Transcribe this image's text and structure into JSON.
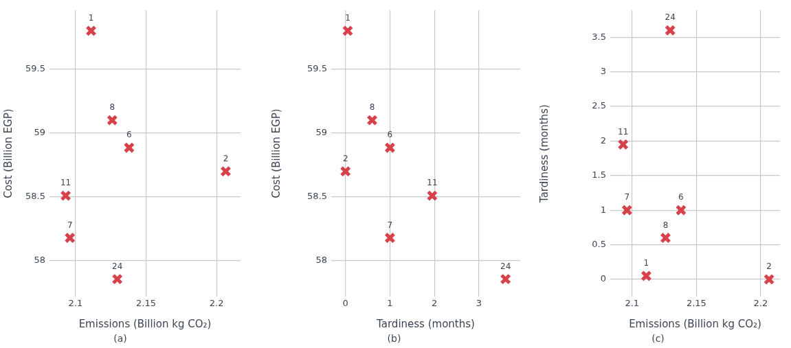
{
  "chart_data": [
    {
      "type": "scatter",
      "title": "(a)",
      "xlabel": "Emissions (Billion kg CO₂)",
      "ylabel": "Cost (Billion EGP)",
      "marker": "cross",
      "grid": true,
      "legend": false,
      "series": [
        {
          "color": "#d9414a",
          "x": [
            2.111,
            2.126,
            2.138,
            2.2065,
            2.093,
            2.096,
            2.1296
          ],
          "values": [
            59.8,
            59.1,
            58.885,
            58.7,
            58.51,
            58.18,
            57.857
          ]
        }
      ],
      "xlim": [
        2.0815,
        2.217
      ],
      "xticks": [
        2.1,
        2.15,
        2.2
      ],
      "ylim": [
        57.72,
        59.96
      ],
      "yticks": [
        58,
        58.5,
        59,
        59.5
      ],
      "annotations": [
        {
          "text": "1",
          "x": 2.111,
          "y": 59.8
        },
        {
          "text": "8",
          "x": 2.126,
          "y": 59.1
        },
        {
          "text": "6",
          "x": 2.138,
          "y": 58.885
        },
        {
          "text": "2",
          "x": 2.2065,
          "y": 58.7
        },
        {
          "text": "11",
          "x": 2.093,
          "y": 58.51
        },
        {
          "text": "7",
          "x": 2.096,
          "y": 58.18
        },
        {
          "text": "24",
          "x": 2.1296,
          "y": 57.857
        }
      ]
    },
    {
      "type": "scatter",
      "title": "(b)",
      "xlabel": "Tardiness (months)",
      "ylabel": "Cost (Billion EGP)",
      "marker": "cross",
      "grid": true,
      "legend": false,
      "series": [
        {
          "color": "#d9414a",
          "x": [
            0.05,
            0.6,
            1,
            0,
            1.95,
            1,
            3.6
          ],
          "values": [
            59.8,
            59.1,
            58.885,
            58.7,
            58.51,
            58.18,
            57.857
          ]
        }
      ],
      "xlim": [
        -0.32,
        3.93
      ],
      "xticks": [
        0,
        1,
        2,
        3
      ],
      "ylim": [
        57.72,
        59.96
      ],
      "yticks": [
        58,
        58.5,
        59,
        59.5
      ],
      "annotations": [
        {
          "text": "1",
          "x": 0.05,
          "y": 59.8
        },
        {
          "text": "8",
          "x": 0.6,
          "y": 59.1
        },
        {
          "text": "6",
          "x": 1,
          "y": 58.885
        },
        {
          "text": "2",
          "x": 0,
          "y": 58.7
        },
        {
          "text": "11",
          "x": 1.95,
          "y": 58.51
        },
        {
          "text": "7",
          "x": 1,
          "y": 58.18
        },
        {
          "text": "24",
          "x": 3.6,
          "y": 57.857
        }
      ]
    },
    {
      "type": "scatter",
      "title": "(c)",
      "xlabel": "Emissions (Billion kg CO₂)",
      "ylabel": "Tardiness (months)",
      "marker": "cross",
      "grid": true,
      "legend": false,
      "series": [
        {
          "color": "#d9414a",
          "x": [
            2.111,
            2.126,
            2.138,
            2.2065,
            2.093,
            2.096,
            2.1296
          ],
          "values": [
            0.05,
            0.6,
            1,
            0,
            1.95,
            1,
            3.6
          ]
        }
      ],
      "xlim": [
        2.083,
        2.215
      ],
      "xticks": [
        2.1,
        2.15,
        2.2
      ],
      "ylim": [
        -0.25,
        3.89
      ],
      "yticks": [
        0,
        0.5,
        1,
        1.5,
        2,
        2.5,
        3,
        3.5
      ],
      "annotations": [
        {
          "text": "1",
          "x": 2.111,
          "y": 0.05
        },
        {
          "text": "8",
          "x": 2.126,
          "y": 0.6
        },
        {
          "text": "6",
          "x": 2.138,
          "y": 1
        },
        {
          "text": "2",
          "x": 2.2065,
          "y": 0
        },
        {
          "text": "11",
          "x": 2.093,
          "y": 1.95
        },
        {
          "text": "7",
          "x": 2.096,
          "y": 1
        },
        {
          "text": "24",
          "x": 2.1296,
          "y": 3.6
        }
      ]
    }
  ]
}
